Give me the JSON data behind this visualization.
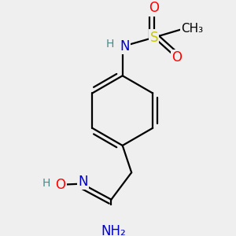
{
  "bg_color": "#efefef",
  "atom_colors": {
    "C": "#000000",
    "N": "#0000cd",
    "O": "#ff0000",
    "S": "#c8c800",
    "H": "#4a8888"
  },
  "bond_color": "#000000",
  "bond_width": 1.6,
  "font_size": 12,
  "font_size_small": 10
}
